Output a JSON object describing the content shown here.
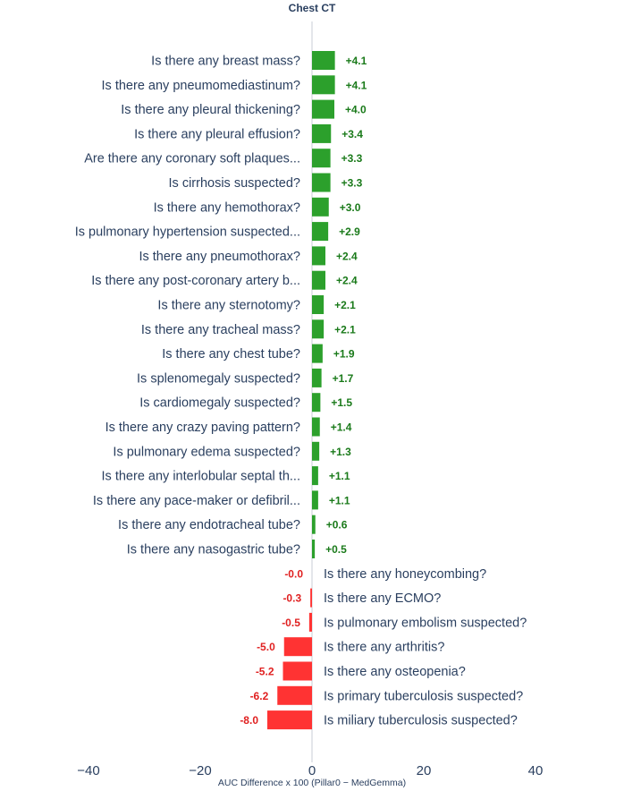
{
  "chart_data": {
    "type": "bar",
    "orientation": "horizontal",
    "title": "Chest CT",
    "xlabel": "AUC Difference x 100 (Pillar0 − MedGemma)",
    "ylabel": "",
    "xlim": [
      -40,
      56
    ],
    "xticks": [
      -40,
      -20,
      0,
      20,
      40
    ],
    "xtick_labels": [
      "−40",
      "−20",
      "0",
      "20",
      "40"
    ],
    "grid": false,
    "colors": {
      "positive": "#2ca02c",
      "negative": "#ff3333",
      "positive_text": "#1a7a1a",
      "negative_text": "#e02020",
      "zero_line": "#c8ccd4"
    },
    "categories": [
      "Is there any breast mass?",
      "Is there any pneumomediastinum?",
      "Is there any pleural thickening?",
      "Is there any pleural effusion?",
      "Are there any coronary soft plaques...",
      "Is cirrhosis suspected?",
      "Is there any hemothorax?",
      "Is pulmonary hypertension suspected...",
      "Is there any pneumothorax?",
      "Is there any post-coronary artery b...",
      "Is there any sternotomy?",
      "Is there any tracheal mass?",
      "Is there any chest tube?",
      "Is splenomegaly suspected?",
      "Is cardiomegaly suspected?",
      "Is there any crazy paving pattern?",
      "Is pulmonary edema suspected?",
      "Is there any interlobular septal th...",
      "Is there any pace-maker or defibril...",
      "Is there any endotracheal tube?",
      "Is there any nasogastric tube?",
      "Is there any honeycombing?",
      "Is there any ECMO?",
      "Is pulmonary embolism suspected?",
      "Is there any arthritis?",
      "Is there any osteopenia?",
      "Is primary tuberculosis suspected?",
      "Is miliary tuberculosis suspected?"
    ],
    "values": [
      4.1,
      4.1,
      4.0,
      3.4,
      3.3,
      3.3,
      3.0,
      2.9,
      2.4,
      2.4,
      2.1,
      2.1,
      1.9,
      1.7,
      1.5,
      1.4,
      1.3,
      1.1,
      1.1,
      0.6,
      0.5,
      -0.0,
      -0.3,
      -0.5,
      -5.0,
      -5.2,
      -6.2,
      -8.0
    ],
    "value_labels": [
      "+4.1",
      "+4.1",
      "+4.0",
      "+3.4",
      "+3.3",
      "+3.3",
      "+3.0",
      "+2.9",
      "+2.4",
      "+2.4",
      "+2.1",
      "+2.1",
      "+1.9",
      "+1.7",
      "+1.5",
      "+1.4",
      "+1.3",
      "+1.1",
      "+1.1",
      "+0.6",
      "+0.5",
      "-0.0",
      "-0.3",
      "-0.5",
      "-5.0",
      "-5.2",
      "-6.2",
      "-8.0"
    ]
  }
}
